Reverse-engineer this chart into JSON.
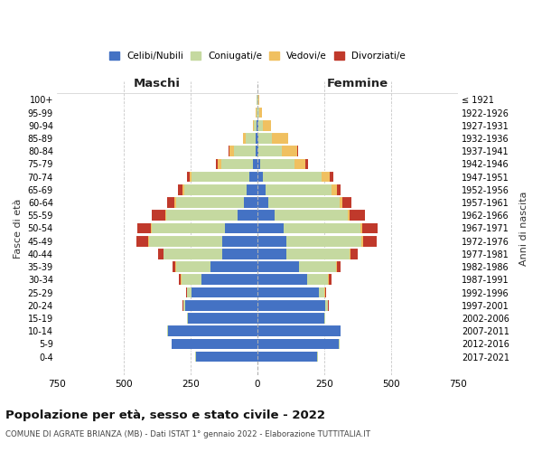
{
  "age_groups": [
    "0-4",
    "5-9",
    "10-14",
    "15-19",
    "20-24",
    "25-29",
    "30-34",
    "35-39",
    "40-44",
    "45-49",
    "50-54",
    "55-59",
    "60-64",
    "65-69",
    "70-74",
    "75-79",
    "80-84",
    "85-89",
    "90-94",
    "95-99",
    "100+"
  ],
  "birth_years": [
    "2017-2021",
    "2012-2016",
    "2007-2011",
    "2002-2006",
    "1997-2001",
    "1992-1996",
    "1987-1991",
    "1982-1986",
    "1977-1981",
    "1972-1976",
    "1967-1971",
    "1962-1966",
    "1957-1961",
    "1952-1956",
    "1947-1951",
    "1942-1946",
    "1937-1941",
    "1932-1936",
    "1927-1931",
    "1922-1926",
    "≤ 1921"
  ],
  "male": {
    "celibi": [
      230,
      320,
      335,
      260,
      270,
      245,
      210,
      175,
      130,
      130,
      120,
      75,
      50,
      40,
      30,
      15,
      8,
      5,
      3,
      1,
      1
    ],
    "coniugati": [
      2,
      2,
      2,
      3,
      8,
      18,
      75,
      130,
      220,
      275,
      275,
      265,
      255,
      235,
      215,
      120,
      80,
      40,
      10,
      3,
      1
    ],
    "vedovi": [
      0,
      0,
      0,
      0,
      0,
      0,
      2,
      2,
      2,
      3,
      4,
      4,
      5,
      7,
      8,
      12,
      18,
      8,
      5,
      2,
      1
    ],
    "divorziati": [
      0,
      0,
      0,
      0,
      2,
      4,
      8,
      12,
      20,
      45,
      50,
      52,
      28,
      14,
      12,
      8,
      2,
      2,
      0,
      0,
      0
    ]
  },
  "female": {
    "nubili": [
      225,
      305,
      310,
      250,
      255,
      230,
      185,
      155,
      110,
      110,
      100,
      65,
      42,
      32,
      22,
      10,
      5,
      4,
      2,
      1,
      1
    ],
    "coniugate": [
      2,
      2,
      2,
      3,
      10,
      22,
      80,
      140,
      235,
      280,
      285,
      272,
      265,
      245,
      220,
      130,
      88,
      50,
      18,
      5,
      1
    ],
    "vedove": [
      0,
      0,
      0,
      0,
      0,
      2,
      3,
      3,
      4,
      5,
      6,
      8,
      12,
      20,
      30,
      40,
      55,
      60,
      30,
      12,
      4
    ],
    "divorziate": [
      0,
      0,
      0,
      0,
      2,
      4,
      10,
      14,
      25,
      50,
      58,
      58,
      32,
      16,
      12,
      8,
      4,
      2,
      0,
      0,
      0
    ]
  },
  "colors": {
    "celibi": "#4472c4",
    "coniugati": "#c5d9a0",
    "vedovi": "#f0c060",
    "divorziati": "#c0392b"
  },
  "title": "Popolazione per età, sesso e stato civile - 2022",
  "subtitle": "COMUNE DI AGRATE BRIANZA (MB) - Dati ISTAT 1° gennaio 2022 - Elaborazione TUTTITALIA.IT",
  "xlabel_left": "Maschi",
  "xlabel_right": "Femmine",
  "ylabel": "Fasce di età",
  "ylabel_right": "Anni di nascita",
  "xlim": 750,
  "legend_labels": [
    "Celibi/Nubili",
    "Coniugati/e",
    "Vedovi/e",
    "Divorziati/e"
  ],
  "background_color": "#ffffff",
  "grid_color": "#c8c8c8"
}
